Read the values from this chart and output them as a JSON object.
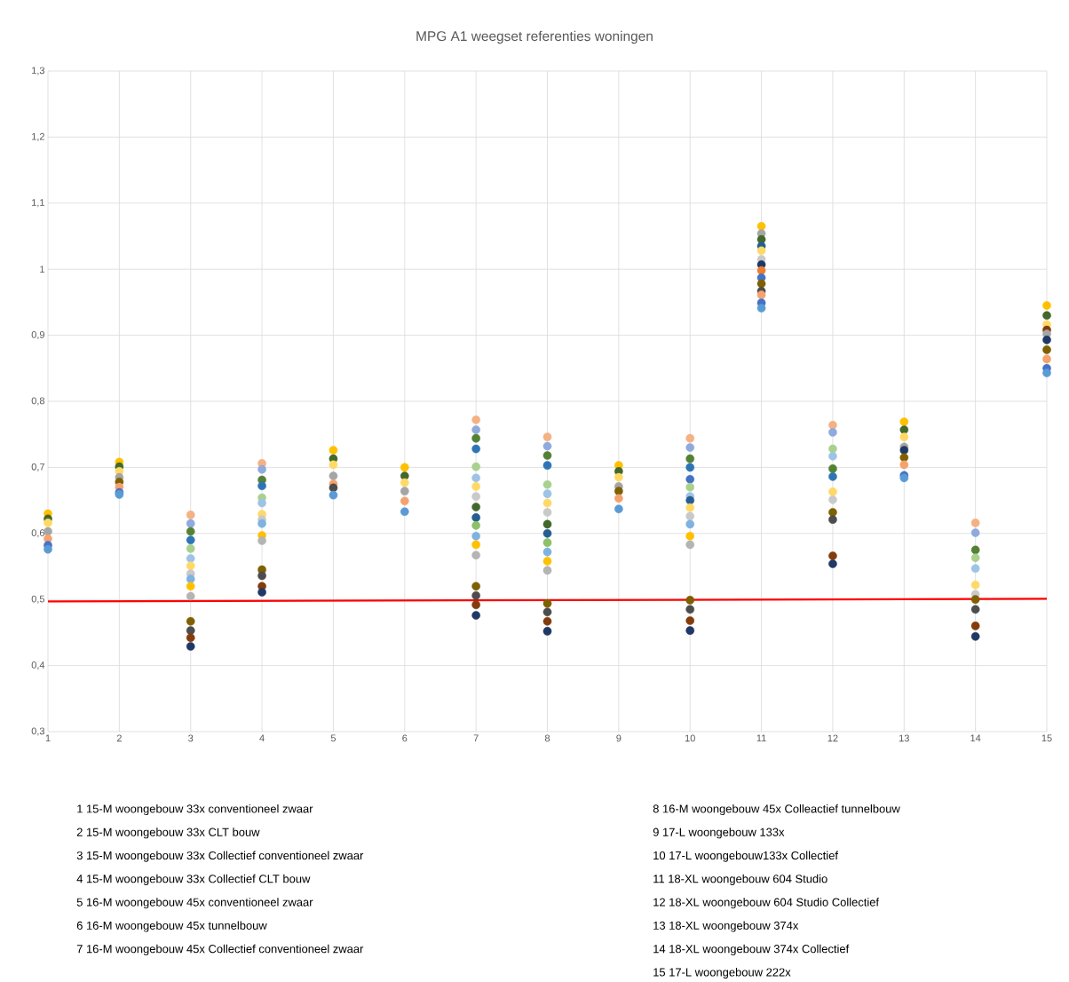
{
  "chart_data": {
    "type": "scatter",
    "title": "MPG A1 weegset referenties woningen",
    "xlim": [
      1,
      15
    ],
    "xticks": [
      1,
      2,
      3,
      4,
      5,
      6,
      7,
      8,
      9,
      10,
      11,
      12,
      13,
      14,
      15
    ],
    "ylim": [
      0.3,
      1.3
    ],
    "yticks": [
      {
        "value": 0.3,
        "label": "0,3"
      },
      {
        "value": 0.4,
        "label": "0,4"
      },
      {
        "value": 0.5,
        "label": "0,5"
      },
      {
        "value": 0.6,
        "label": "0,6"
      },
      {
        "value": 0.7,
        "label": "0,7"
      },
      {
        "value": 0.8,
        "label": "0,8"
      },
      {
        "value": 0.9,
        "label": "0,9"
      },
      {
        "value": 1,
        "label": "1"
      },
      {
        "value": 1.1,
        "label": "1,1"
      },
      {
        "value": 1.2,
        "label": "1,2"
      },
      {
        "value": 1.3,
        "label": "1,3"
      }
    ],
    "grid": true,
    "marker": "circle",
    "series": [
      {
        "x": [
          1,
          1,
          1,
          1,
          1,
          1,
          1,
          2,
          2,
          2,
          2,
          2,
          2,
          2,
          2,
          3,
          3,
          3,
          3,
          3,
          3,
          3,
          3,
          3,
          3,
          3,
          3,
          3,
          3,
          3,
          4,
          4,
          4,
          4,
          4,
          4,
          4,
          4,
          4,
          4,
          4,
          4,
          4,
          4,
          4,
          5,
          5,
          5,
          5,
          5,
          5,
          5,
          6,
          6,
          6,
          6,
          6,
          6,
          7,
          7,
          7,
          7,
          7,
          7,
          7,
          7,
          7,
          7,
          7,
          7,
          7,
          7,
          7,
          7,
          7,
          7,
          8,
          8,
          8,
          8,
          8,
          8,
          8,
          8,
          8,
          8,
          8,
          8,
          8,
          8,
          8,
          8,
          8,
          8,
          9,
          9,
          9,
          9,
          9,
          9,
          9,
          10,
          10,
          10,
          10,
          10,
          10,
          10,
          10,
          10,
          10,
          10,
          10,
          10,
          10,
          10,
          10,
          10,
          11,
          11,
          11,
          11,
          11,
          11,
          11,
          11,
          11,
          11,
          11,
          11,
          11,
          11,
          12,
          12,
          12,
          12,
          12,
          12,
          12,
          12,
          12,
          12,
          12,
          12,
          13,
          13,
          13,
          13,
          13,
          13,
          13,
          13,
          13,
          14,
          14,
          14,
          14,
          14,
          14,
          14,
          14,
          14,
          14,
          14,
          15,
          15,
          15,
          15,
          15,
          15,
          15,
          15,
          15,
          15
        ],
        "values": [
          0.63,
          0.622,
          0.616,
          0.603,
          0.592,
          0.582,
          0.576,
          0.708,
          0.701,
          0.694,
          0.685,
          0.678,
          0.67,
          0.662,
          0.659,
          0.628,
          0.615,
          0.603,
          0.59,
          0.577,
          0.562,
          0.551,
          0.539,
          0.531,
          0.52,
          0.505,
          0.467,
          0.453,
          0.442,
          0.429,
          0.706,
          0.697,
          0.681,
          0.672,
          0.654,
          0.646,
          0.629,
          0.621,
          0.615,
          0.597,
          0.589,
          0.545,
          0.536,
          0.52,
          0.511,
          0.726,
          0.713,
          0.704,
          0.687,
          0.675,
          0.669,
          0.658,
          0.7,
          0.687,
          0.677,
          0.664,
          0.649,
          0.633,
          0.772,
          0.757,
          0.744,
          0.728,
          0.701,
          0.684,
          0.671,
          0.656,
          0.64,
          0.624,
          0.612,
          0.596,
          0.583,
          0.567,
          0.52,
          0.506,
          0.492,
          0.476,
          0.746,
          0.732,
          0.718,
          0.703,
          0.674,
          0.66,
          0.646,
          0.632,
          0.614,
          0.6,
          0.586,
          0.572,
          0.558,
          0.544,
          0.494,
          0.481,
          0.467,
          0.452,
          0.703,
          0.694,
          0.685,
          0.671,
          0.664,
          0.653,
          0.637,
          0.744,
          0.73,
          0.713,
          0.7,
          0.682,
          0.67,
          0.656,
          0.65,
          0.639,
          0.626,
          0.614,
          0.596,
          0.583,
          0.499,
          0.485,
          0.468,
          0.453,
          1.065,
          1.054,
          1.045,
          1.035,
          1.028,
          1.015,
          1.007,
          0.998,
          0.987,
          0.978,
          0.967,
          0.961,
          0.949,
          0.941,
          0.764,
          0.753,
          0.728,
          0.717,
          0.698,
          0.686,
          0.663,
          0.651,
          0.632,
          0.621,
          0.566,
          0.554,
          0.769,
          0.757,
          0.746,
          0.731,
          0.726,
          0.715,
          0.704,
          0.688,
          0.684,
          0.616,
          0.601,
          0.575,
          0.563,
          0.547,
          0.522,
          0.508,
          0.5,
          0.485,
          0.46,
          0.444,
          0.945,
          0.93,
          0.916,
          0.908,
          0.902,
          0.893,
          0.878,
          0.864,
          0.85,
          0.843
        ],
        "colors": [
          "#ffc000",
          "#43682b",
          "#ffd966",
          "#a5a5a5",
          "#f4a26e",
          "#4472c4",
          "#5b9bd5",
          "#ffc000",
          "#43682b",
          "#ffd966",
          "#a5a5a5",
          "#7f6000",
          "#f4a26e",
          "#4472c4",
          "#5b9bd5",
          "#f4b183",
          "#8faadc",
          "#548235",
          "#2e75b6",
          "#a9d18e",
          "#9dc3e6",
          "#ffd966",
          "#c9c9c9",
          "#7fb2e0",
          "#ffc000",
          "#b4b4b4",
          "#7f6000",
          "#4d4d4d",
          "#843c0c",
          "#203864",
          "#f4b183",
          "#8faadc",
          "#548235",
          "#2e75b6",
          "#a9d18e",
          "#9dc3e6",
          "#ffd966",
          "#c9c9c9",
          "#7fb2e0",
          "#ffc000",
          "#b4b4b4",
          "#7f6000",
          "#4d4d4d",
          "#843c0c",
          "#203864",
          "#ffc000",
          "#43682b",
          "#ffd966",
          "#a5a5a5",
          "#f4a26e",
          "#4d4d4d",
          "#5b9bd5",
          "#ffc000",
          "#43682b",
          "#ffd966",
          "#a5a5a5",
          "#f4a26e",
          "#5b9bd5",
          "#f4b183",
          "#8faadc",
          "#548235",
          "#2e75b6",
          "#a9d18e",
          "#9dc3e6",
          "#ffd966",
          "#c9c9c9",
          "#43682b",
          "#255e91",
          "#8cc168",
          "#7fb2e0",
          "#ffc000",
          "#b4b4b4",
          "#7f6000",
          "#4d4d4d",
          "#843c0c",
          "#203864",
          "#f4b183",
          "#8faadc",
          "#548235",
          "#2e75b6",
          "#a9d18e",
          "#9dc3e6",
          "#ffd966",
          "#c9c9c9",
          "#43682b",
          "#255e91",
          "#8cc168",
          "#7fb2e0",
          "#ffc000",
          "#b4b4b4",
          "#7f6000",
          "#4d4d4d",
          "#843c0c",
          "#203864",
          "#ffc000",
          "#43682b",
          "#ffd966",
          "#a5a5a5",
          "#7f6000",
          "#f4a26e",
          "#5b9bd5",
          "#f4b183",
          "#8faadc",
          "#548235",
          "#2e75b6",
          "#4472c4",
          "#a9d18e",
          "#9dc3e6",
          "#255e91",
          "#ffd966",
          "#c9c9c9",
          "#7fb2e0",
          "#ffc000",
          "#b4b4b4",
          "#7f6000",
          "#4d4d4d",
          "#843c0c",
          "#203864",
          "#ffc000",
          "#a5a5a5",
          "#43682b",
          "#255e91",
          "#ffd966",
          "#c9c9c9",
          "#203864",
          "#ed7d31",
          "#4472c4",
          "#7f6000",
          "#4d4d4d",
          "#f4a26e",
          "#4472c4",
          "#5b9bd5",
          "#f4b183",
          "#8faadc",
          "#a9d18e",
          "#9dc3e6",
          "#548235",
          "#2e75b6",
          "#ffd966",
          "#c9c9c9",
          "#7f6000",
          "#4d4d4d",
          "#843c0c",
          "#203864",
          "#ffc000",
          "#43682b",
          "#ffd966",
          "#a5a5a5",
          "#203864",
          "#7f6000",
          "#f4a26e",
          "#4472c4",
          "#5b9bd5",
          "#f4b183",
          "#8faadc",
          "#548235",
          "#a9d18e",
          "#9dc3e6",
          "#ffd966",
          "#c9c9c9",
          "#7f6000",
          "#4d4d4d",
          "#843c0c",
          "#203864",
          "#ffc000",
          "#43682b",
          "#ffd966",
          "#843c0c",
          "#a5a5a5",
          "#203864",
          "#7f6000",
          "#f4a26e",
          "#4472c4",
          "#5b9bd5"
        ]
      },
      {
        "type": "line",
        "x": [
          1,
          15
        ],
        "values": [
          0.497,
          0.501
        ],
        "color": "#ff0000",
        "marker": "none",
        "line_style": "solid"
      }
    ],
    "annotations": [
      "1 15-M woongebouw 33x conventioneel zwaar",
      "2 15-M woongebouw 33x CLT bouw",
      "3 15-M woongebouw 33x Collectief conventioneel zwaar",
      "4 15-M woongebouw 33x Collectief CLT bouw",
      "5 16-M woongebouw 45x conventioneel zwaar",
      "6 16-M woongebouw 45x tunnelbouw",
      "7 16-M woongebouw 45x Collectief conventioneel zwaar",
      "8 16-M woongebouw 45x Colleactief tunnelbouw",
      "9 17-L woongebouw 133x",
      "10 17-L woongebouw133x Collectief",
      "11 18-XL woongebouw 604 Studio",
      "12 18-XL woongebouw 604 Studio Collectief",
      "13 18-XL woongebouw 374x",
      "14 18-XL woongebouw 374x Collectief",
      "15 17-L woongebouw 222x"
    ]
  }
}
